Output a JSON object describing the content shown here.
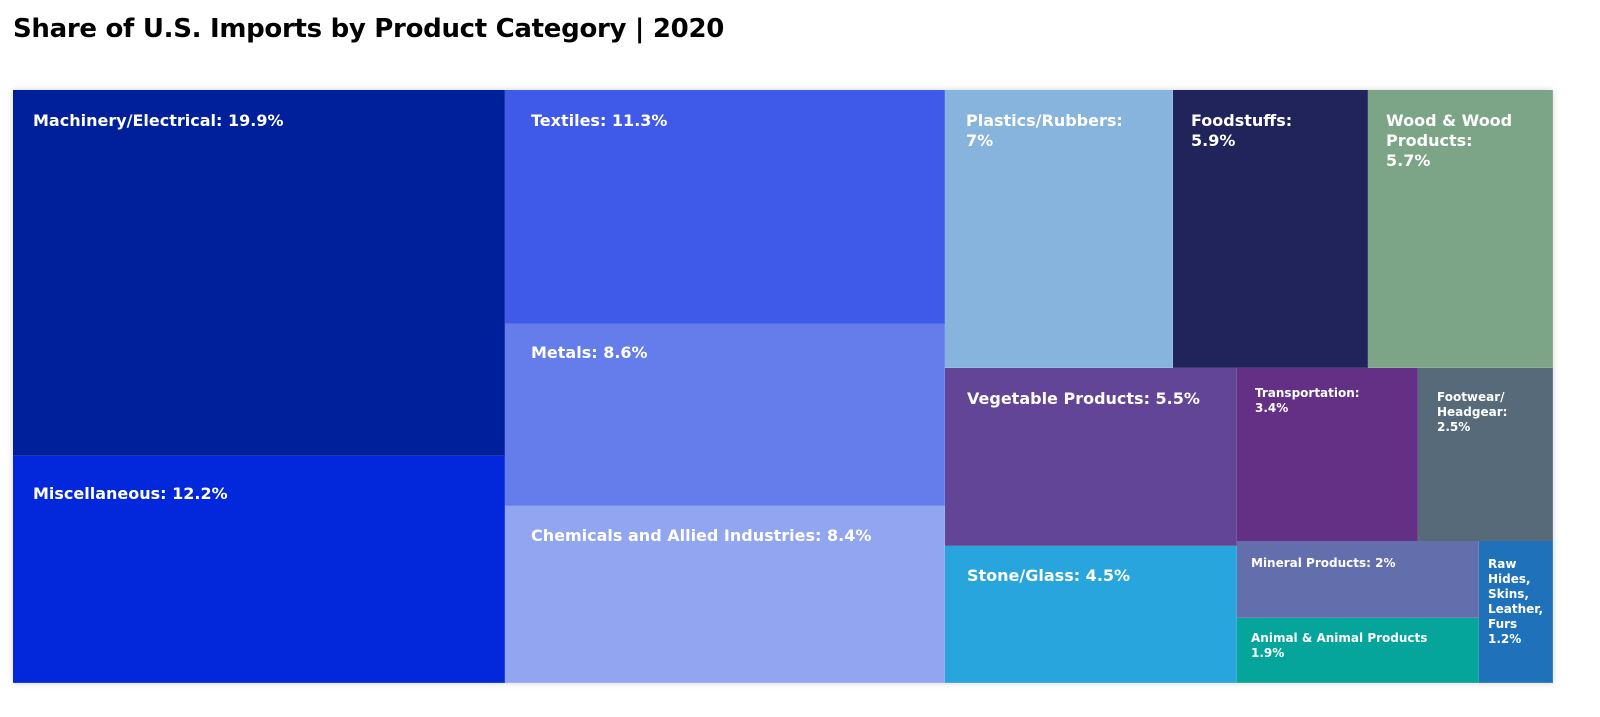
{
  "title": "Share of U.S. Imports by Product Category | 2020",
  "chart_data": {
    "type": "treemap",
    "title": "Share of U.S. Imports by Product Category | 2020",
    "unit": "%",
    "items": [
      {
        "name": "Machinery/Electrical",
        "value": 19.9,
        "label": "Machinery/Electrical: 19.9%",
        "color": "#001f9b"
      },
      {
        "name": "Miscellaneous",
        "value": 12.2,
        "label": "Miscellaneous: 12.2%",
        "color": "#0327da"
      },
      {
        "name": "Textiles",
        "value": 11.3,
        "label": "Textiles: 11.3%",
        "color": "#3f5ae8"
      },
      {
        "name": "Metals",
        "value": 8.6,
        "label": "Metals: 8.6%",
        "color": "#647deb"
      },
      {
        "name": "Chemicals and Allied Industries",
        "value": 8.4,
        "label": "Chemicals and Allied Industries: 8.4%",
        "color": "#92a5f1"
      },
      {
        "name": "Plastics/Rubbers",
        "value": 7,
        "label": "Plastics/Rubbers:\n7%",
        "color": "#86b4dd"
      },
      {
        "name": "Foodstuffs",
        "value": 5.9,
        "label": "Foodstuffs:\n5.9%",
        "color": "#20245a"
      },
      {
        "name": "Wood & Wood Products",
        "value": 5.7,
        "label": "Wood & Wood\nProducts:\n5.7%",
        "color": "#7ca587"
      },
      {
        "name": "Vegetable Products",
        "value": 5.5,
        "label": "Vegetable Products: 5.5%",
        "color": "#634597"
      },
      {
        "name": "Transportation",
        "value": 3.4,
        "label": "Transportation:\n3.4%",
        "color": "#633086"
      },
      {
        "name": "Footwear/ Headgear",
        "value": 2.5,
        "label": "Footwear/\nHeadgear:\n2.5%",
        "color": "#566a7a"
      },
      {
        "name": "Stone/Glass",
        "value": 4.5,
        "label": "Stone/Glass: 4.5%",
        "color": "#29a5de"
      },
      {
        "name": "Mineral Products",
        "value": 2,
        "label": "Mineral Products: 2%",
        "color": "#636ead"
      },
      {
        "name": "Animal & Animal Products",
        "value": 1.9,
        "label": "Animal & Animal Products\n1.9%",
        "color": "#05a59b"
      },
      {
        "name": "Raw Hides, Skins, Leather, Furs",
        "value": 1.2,
        "label": "Raw\nHides,\nSkins,\nLeather,\nFurs\n1.2%",
        "color": "#1f72b9"
      }
    ]
  }
}
